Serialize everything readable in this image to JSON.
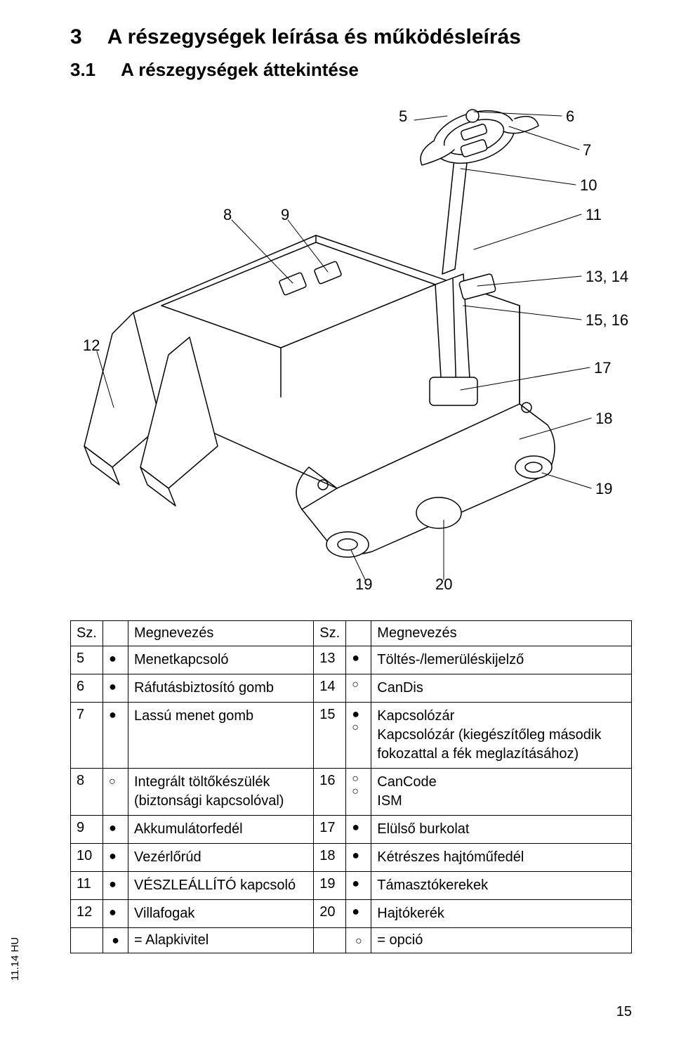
{
  "headings": {
    "h1_num": "3",
    "h1_txt": "A részegységek leírása és működésleírás",
    "h2_num": "3.1",
    "h2_txt": "A részegységek áttekintése"
  },
  "callouts": {
    "c5": "5",
    "c6": "6",
    "c7": "7",
    "c8": "8",
    "c9": "9",
    "c10": "10",
    "c11": "11",
    "c12": "12",
    "c13_14": "13, 14",
    "c15_16": "15, 16",
    "c17": "17",
    "c18": "18",
    "c19a": "19",
    "c19b": "19",
    "c20": "20"
  },
  "table": {
    "head": {
      "sz": "Sz.",
      "name": "Megnevezés"
    },
    "rows": [
      {
        "l_num": "5",
        "l_mark": "dot",
        "l_name": "Menetkapcsoló",
        "r_num": "13",
        "r_marks": [
          "dot"
        ],
        "r_name": "Töltés-/lemerüléskijelző"
      },
      {
        "l_num": "6",
        "l_mark": "dot",
        "l_name": "Ráfutásbiztosító gomb",
        "r_num": "14",
        "r_marks": [
          "circ"
        ],
        "r_name": "CanDis"
      },
      {
        "l_num": "7",
        "l_mark": "dot",
        "l_name": "Lassú menet gomb",
        "r_num": "15",
        "r_marks": [
          "dot",
          "circ"
        ],
        "r_name": "Kapcsolózár\nKapcsolózár (kiegészítőleg második fokozattal a fék meglazításához)"
      },
      {
        "l_num": "8",
        "l_mark": "circ",
        "l_name": "Integrált töltőkészülék (biztonsági kapcsolóval)",
        "r_num": "16",
        "r_marks": [
          "circ",
          "circ"
        ],
        "r_name": "CanCode\nISM"
      },
      {
        "l_num": "9",
        "l_mark": "dot",
        "l_name": "Akkumulátorfedél",
        "r_num": "17",
        "r_marks": [
          "dot"
        ],
        "r_name": "Elülső burkolat"
      },
      {
        "l_num": "10",
        "l_mark": "dot",
        "l_name": "Vezérlőrúd",
        "r_num": "18",
        "r_marks": [
          "dot"
        ],
        "r_name": "Kétrészes hajtóműfedél"
      },
      {
        "l_num": "11",
        "l_mark": "dot",
        "l_name": "VÉSZLEÁLLÍTÓ kapcsoló",
        "r_num": "19",
        "r_marks": [
          "dot"
        ],
        "r_name": "Támasztókerekek"
      },
      {
        "l_num": "12",
        "l_mark": "dot",
        "l_name": "Villafogak",
        "r_num": "20",
        "r_marks": [
          "dot"
        ],
        "r_name": "Hajtókerék"
      }
    ],
    "legend": {
      "std_label": "= Alapkivitel",
      "opt_label": "= opció"
    }
  },
  "marks": {
    "dot": "●",
    "circ": "○"
  },
  "footer": {
    "left": "11.14 HU",
    "page": "15"
  },
  "colors": {
    "line": "#000000",
    "fill": "#ffffff"
  }
}
